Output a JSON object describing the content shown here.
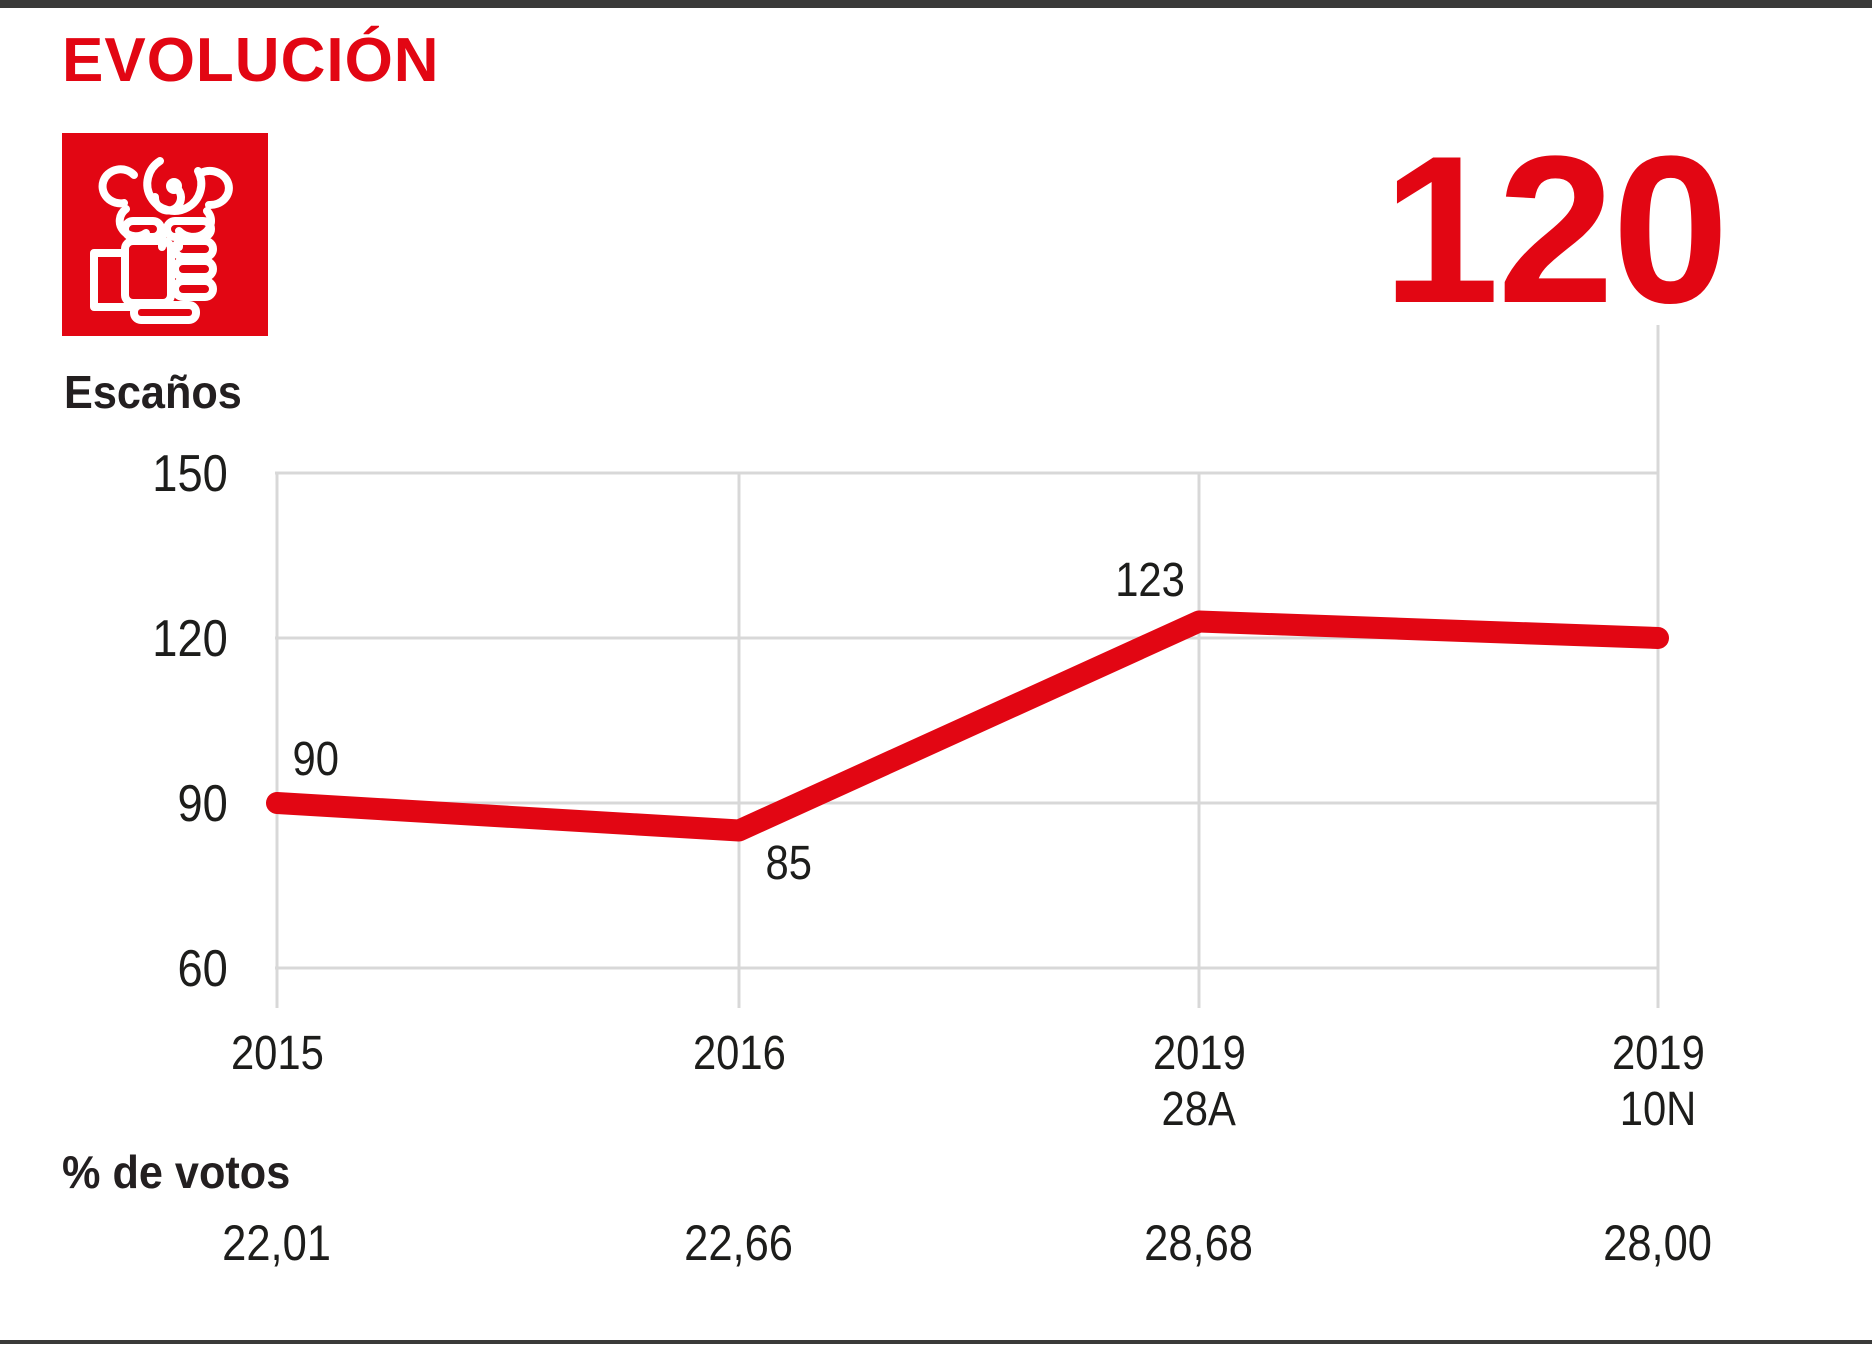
{
  "header": {
    "title": "EVOLUCIÓN"
  },
  "logo": {
    "party": "PSOE",
    "icon": "rose-in-fist-icon",
    "background_color": "#e20613"
  },
  "chart_data": {
    "type": "line",
    "title": "EVOLUCIÓN",
    "ylabel": "Escaños",
    "votes_label": "% de votos",
    "categories": [
      "2015",
      "2016",
      "2019 28A",
      "2019 10N"
    ],
    "xticks": [
      {
        "line1": "2015",
        "line2": ""
      },
      {
        "line1": "2016",
        "line2": ""
      },
      {
        "line1": "2019",
        "line2": "28A"
      },
      {
        "line1": "2019",
        "line2": "10N"
      }
    ],
    "series": [
      {
        "name": "PSOE escaños",
        "values": [
          90,
          85,
          123,
          120
        ]
      }
    ],
    "point_labels": [
      "90",
      "85",
      "123"
    ],
    "highlight_value": "120",
    "yticks": [
      "150",
      "120",
      "90",
      "60"
    ],
    "ylim": [
      60,
      150
    ],
    "grid": true,
    "legend_position": "none",
    "percent_votes": [
      "22,01",
      "22,66",
      "28,68",
      "28,00"
    ],
    "line_color": "#e20613"
  },
  "colors": {
    "accent_red": "#e20613",
    "text_dark": "#1d1d1b",
    "grid_gray": "#d8d8d8",
    "rule_dark": "#3a3a39"
  }
}
